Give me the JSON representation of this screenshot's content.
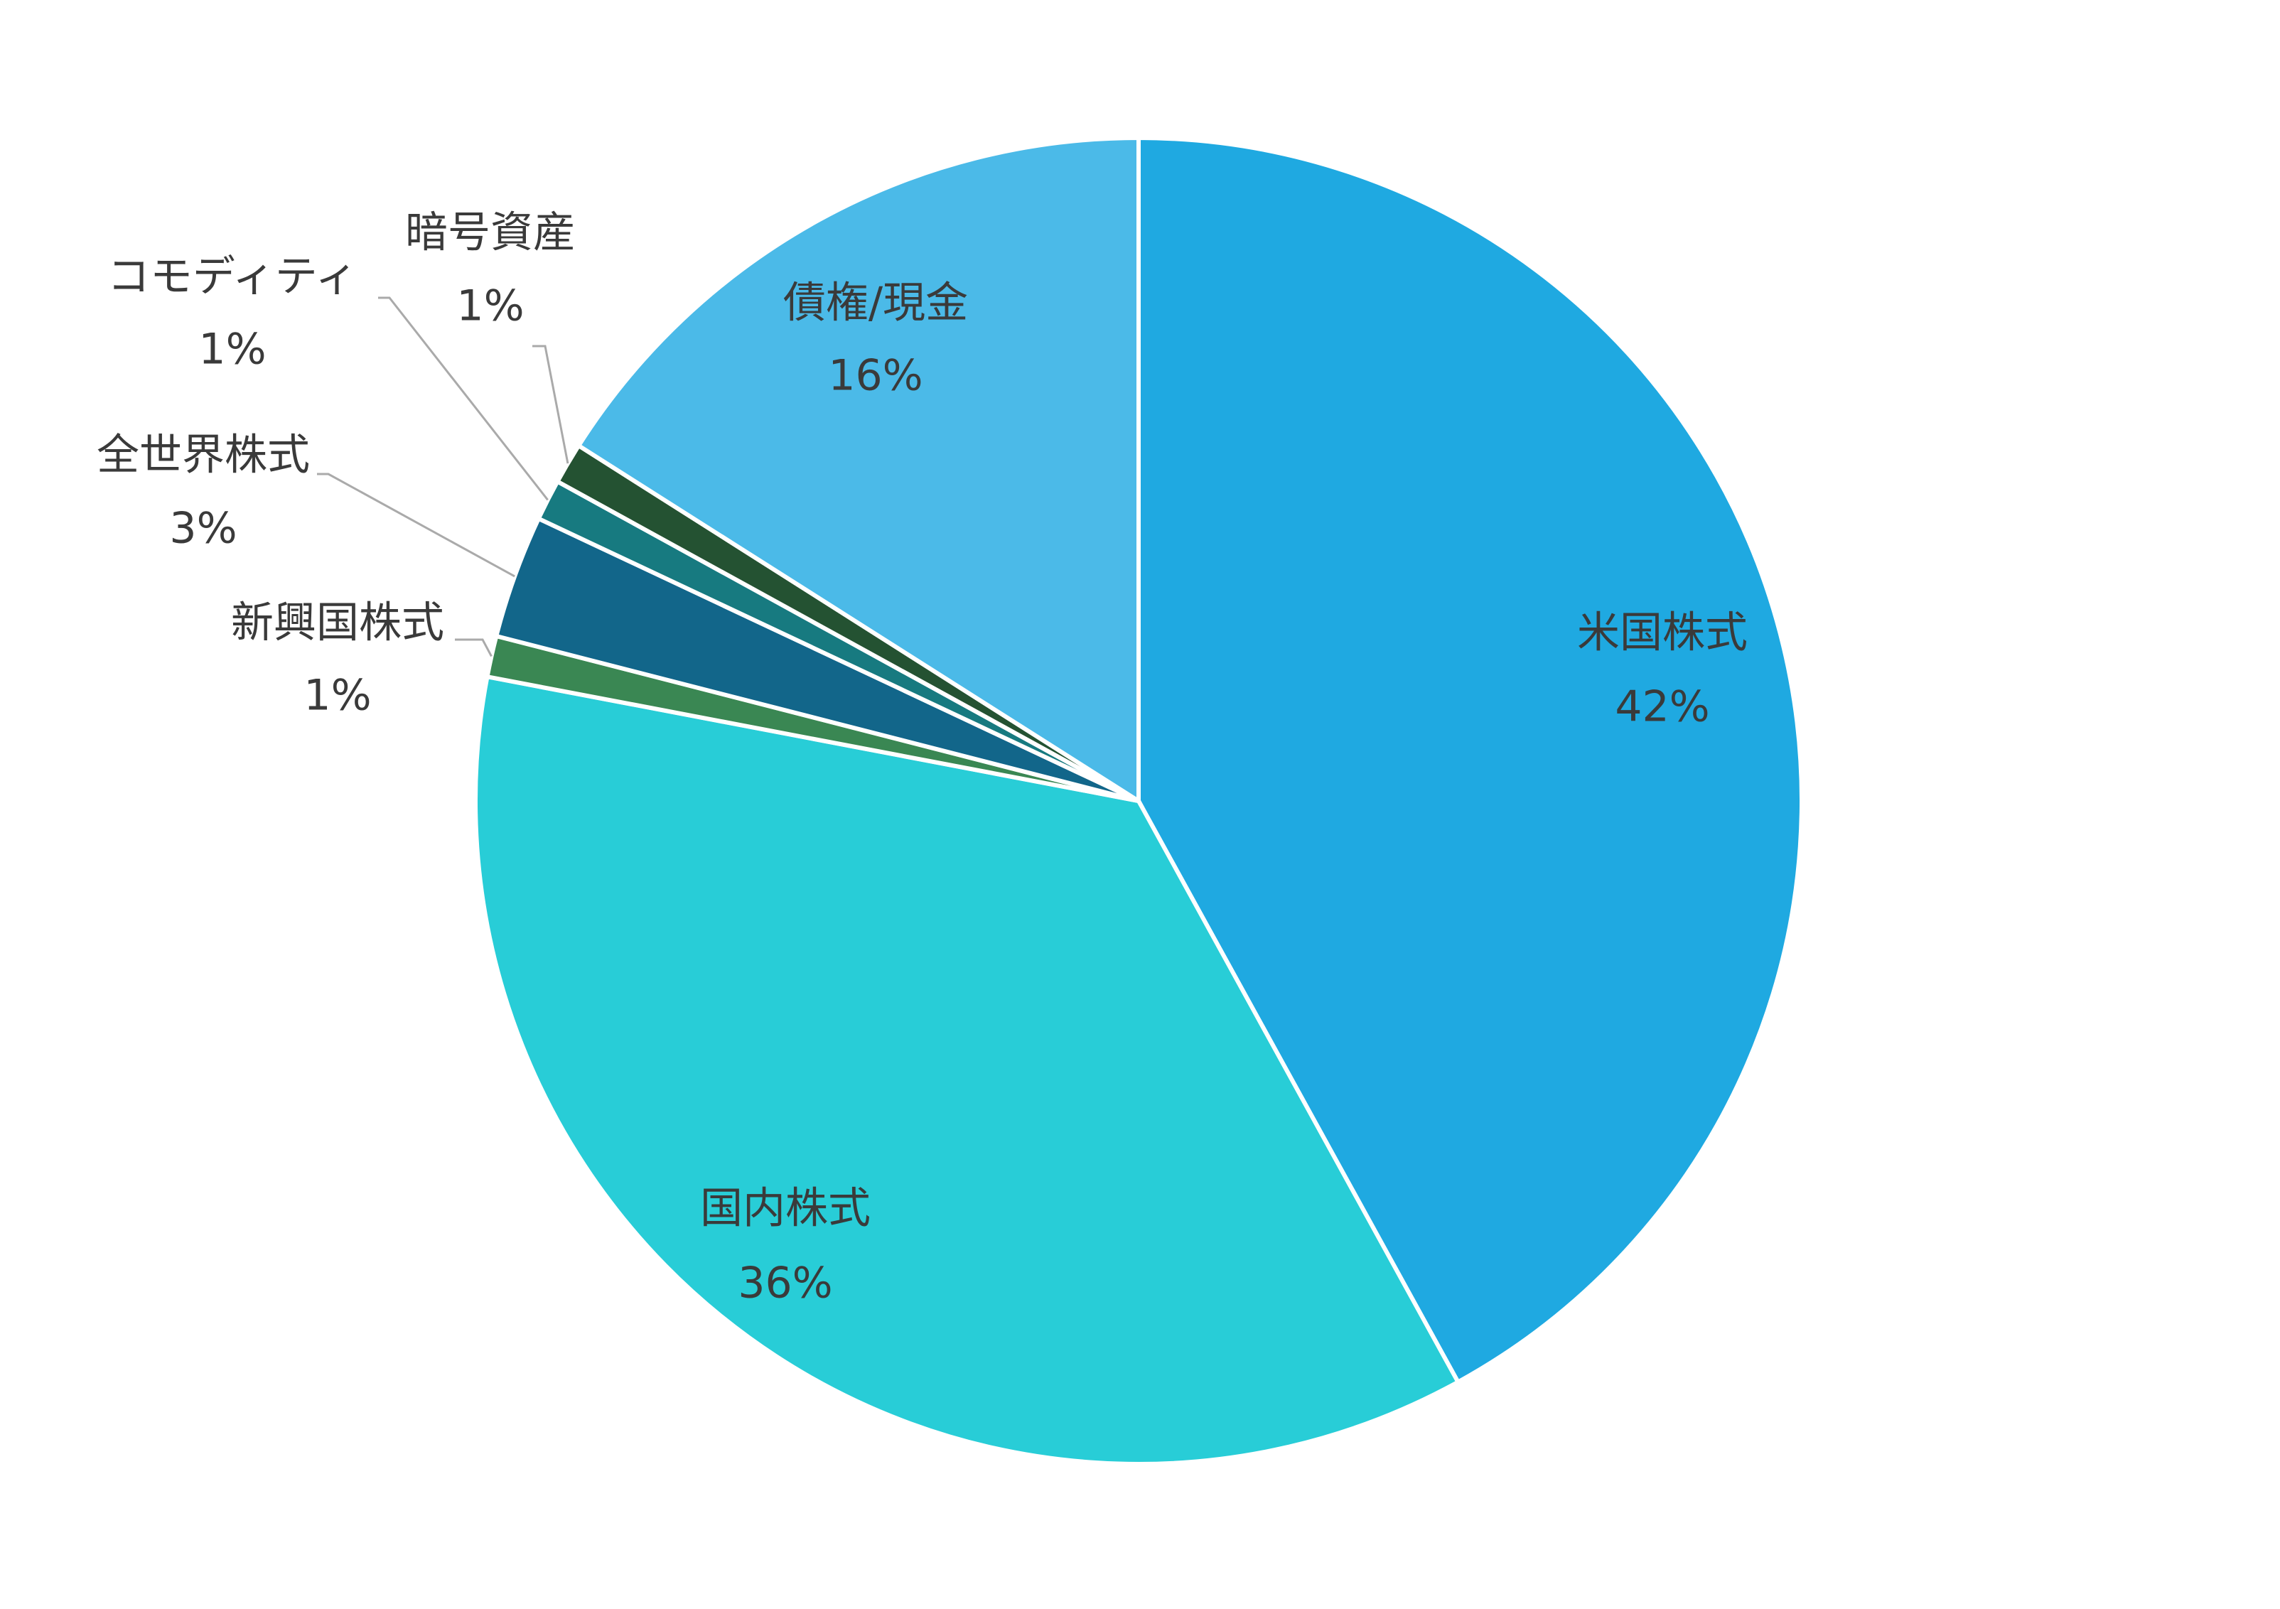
{
  "chart_data": {
    "type": "pie",
    "categories": [
      "米国株式",
      "国内株式",
      "新興国株式",
      "全世界株式",
      "コモディティ",
      "暗号資産",
      "債権/現金"
    ],
    "values": [
      42,
      36,
      1,
      3,
      1,
      1,
      16
    ],
    "value_labels": [
      "42%",
      "36%",
      "1%",
      "3%",
      "1%",
      "1%",
      "16%"
    ],
    "colors": [
      "#1fa9e1",
      "#28cdd7",
      "#3a8753",
      "#12668a",
      "#177a80",
      "#245232",
      "#4bbae8"
    ]
  }
}
